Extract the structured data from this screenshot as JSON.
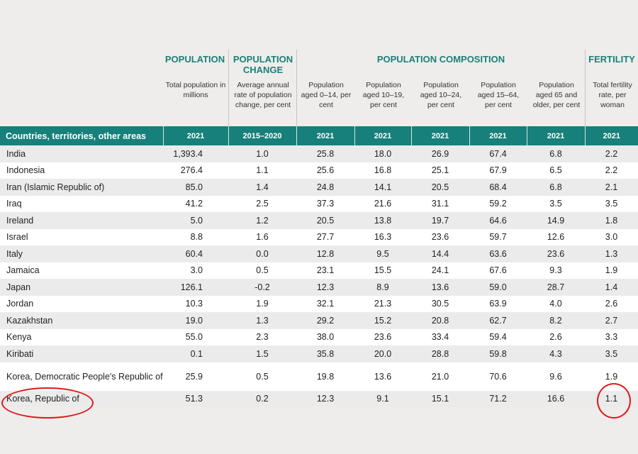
{
  "groups": {
    "population": "POPULATION",
    "change": "POPULATION CHANGE",
    "composition": "POPULATION COMPOSITION",
    "fertility": "FERTILITY"
  },
  "subheaders": [
    "Total population in millions",
    "Average annual rate of population change, per cent",
    "Population aged 0–14, per cent",
    "Population aged 10–19, per cent",
    "Population aged 10–24, per cent",
    "Population aged 15–64, per cent",
    "Population aged 65 and older, per cent",
    "Total fertility rate, per woman"
  ],
  "columns": [
    "Countries, territories, other areas",
    "2021",
    "2015–2020",
    "2021",
    "2021",
    "2021",
    "2021",
    "2021",
    "2021"
  ],
  "rows": [
    [
      "India",
      "1,393.4",
      "1.0",
      "25.8",
      "18.0",
      "26.9",
      "67.4",
      "6.8",
      "2.2"
    ],
    [
      "Indonesia",
      "276.4",
      "1.1",
      "25.6",
      "16.8",
      "25.1",
      "67.9",
      "6.5",
      "2.2"
    ],
    [
      "Iran (Islamic Republic of)",
      "85.0",
      "1.4",
      "24.8",
      "14.1",
      "20.5",
      "68.4",
      "6.8",
      "2.1"
    ],
    [
      "Iraq",
      "41.2",
      "2.5",
      "37.3",
      "21.6",
      "31.1",
      "59.2",
      "3.5",
      "3.5"
    ],
    [
      "Ireland",
      "5.0",
      "1.2",
      "20.5",
      "13.8",
      "19.7",
      "64.6",
      "14.9",
      "1.8"
    ],
    [
      "Israel",
      "8.8",
      "1.6",
      "27.7",
      "16.3",
      "23.6",
      "59.7",
      "12.6",
      "3.0"
    ],
    [
      "Italy",
      "60.4",
      "0.0",
      "12.8",
      "9.5",
      "14.4",
      "63.6",
      "23.6",
      "1.3"
    ],
    [
      "Jamaica",
      "3.0",
      "0.5",
      "23.1",
      "15.5",
      "24.1",
      "67.6",
      "9.3",
      "1.9"
    ],
    [
      "Japan",
      "126.1",
      "-0.2",
      "12.3",
      "8.9",
      "13.6",
      "59.0",
      "28.7",
      "1.4"
    ],
    [
      "Jordan",
      "10.3",
      "1.9",
      "32.1",
      "21.3",
      "30.5",
      "63.9",
      "4.0",
      "2.6"
    ],
    [
      "Kazakhstan",
      "19.0",
      "1.3",
      "29.2",
      "15.2",
      "20.8",
      "62.7",
      "8.2",
      "2.7"
    ],
    [
      "Kenya",
      "55.0",
      "2.3",
      "38.0",
      "23.6",
      "33.4",
      "59.4",
      "2.6",
      "3.3"
    ],
    [
      "Kiribati",
      "0.1",
      "1.5",
      "35.8",
      "20.0",
      "28.8",
      "59.8",
      "4.3",
      "3.5"
    ],
    [
      "Korea, Democratic People's Republic of",
      "25.9",
      "0.5",
      "19.8",
      "13.6",
      "21.0",
      "70.6",
      "9.6",
      "1.9"
    ],
    [
      "Korea, Republic of",
      "51.3",
      "0.2",
      "12.3",
      "9.1",
      "15.1",
      "71.2",
      "16.6",
      "1.1"
    ]
  ],
  "colors": {
    "header": "#17807a",
    "accent_text": "#1c8079",
    "annotation": "#e0191b"
  }
}
